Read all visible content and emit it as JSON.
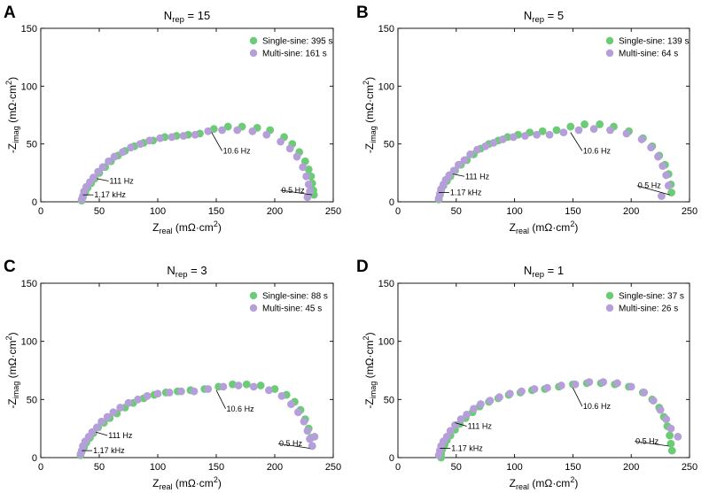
{
  "figure": {
    "colors": {
      "single_sine": "#6ccc76",
      "multi_sine": "#b49fd8",
      "axis": "#000000"
    }
  },
  "chart_data": [
    {
      "panel": "A",
      "type": "scatter",
      "title_main": "N",
      "title_sub": "rep",
      "title_rest": " = 15",
      "xlabel_main": "Z",
      "xlabel_sub": "real",
      "xlabel_rest": " (mΩ·cm",
      "xlabel_sup": "2",
      "xlabel_end": ")",
      "ylabel_main": "-Z",
      "ylabel_sub": "imag",
      "ylabel_rest": " (mΩ·cm",
      "ylabel_sup": "2",
      "ylabel_end": ")",
      "xlim": [
        0,
        250
      ],
      "ylim": [
        0,
        150
      ],
      "xticks": [
        "0",
        "50",
        "100",
        "150",
        "200",
        "250"
      ],
      "yticks": [
        "0",
        "50",
        "100",
        "150"
      ],
      "legend_position": "top-right",
      "annotations": [
        {
          "text": "1.17 kHz",
          "point": [
            36,
            6
          ],
          "label_at": [
            45,
            6
          ]
        },
        {
          "text": "111 Hz",
          "point": [
            48,
            20
          ],
          "label_at": [
            58,
            18
          ]
        },
        {
          "text": "10.6 Hz",
          "point": [
            146,
            60
          ],
          "label_at": [
            155,
            44
          ]
        },
        {
          "text": "0.5 Hz",
          "point": [
            232,
            6
          ],
          "label_at": [
            205,
            10
          ]
        }
      ],
      "series": [
        {
          "name": "Single-sine: 395 s",
          "color_key": "single_sine",
          "x": [
            35,
            36,
            38,
            40,
            43,
            46,
            50,
            55,
            60,
            66,
            72,
            80,
            88,
            96,
            106,
            116,
            126,
            136,
            148,
            160,
            172,
            185,
            196,
            208,
            215,
            221,
            226,
            229,
            231,
            232,
            233,
            233.5
          ],
          "y": [
            1,
            4,
            8,
            12,
            16,
            20,
            25,
            30,
            35,
            40,
            44,
            48,
            51,
            53,
            56,
            57,
            58,
            59,
            63,
            65,
            65,
            64,
            62,
            56,
            50,
            43,
            35,
            28,
            22,
            16,
            10,
            6
          ]
        },
        {
          "name": "Multi-sine: 161 s",
          "color_key": "multi_sine",
          "x": [
            35,
            36,
            37,
            39,
            42,
            45,
            49,
            53,
            58,
            63,
            70,
            77,
            85,
            93,
            102,
            112,
            122,
            132,
            143,
            155,
            168,
            181,
            193,
            205,
            213,
            219,
            224,
            227,
            229,
            230,
            228
          ],
          "y": [
            2,
            5,
            9,
            13,
            17,
            21,
            26,
            30,
            35,
            39,
            43,
            47,
            50,
            53,
            55,
            56,
            57,
            58,
            61,
            62,
            62,
            61,
            58,
            52,
            46,
            39,
            30,
            22,
            15,
            9,
            4
          ]
        }
      ]
    },
    {
      "panel": "B",
      "type": "scatter",
      "title_main": "N",
      "title_sub": "rep",
      "title_rest": " = 5",
      "xlabel_main": "Z",
      "xlabel_sub": "real",
      "xlabel_rest": " (mΩ·cm",
      "xlabel_sup": "2",
      "xlabel_end": ")",
      "ylabel_main": "-Z",
      "ylabel_sub": "imag",
      "ylabel_rest": " (mΩ·cm",
      "ylabel_sup": "2",
      "ylabel_end": ")",
      "xlim": [
        0,
        250
      ],
      "ylim": [
        0,
        150
      ],
      "xticks": [
        "0",
        "50",
        "100",
        "150",
        "200",
        "250"
      ],
      "yticks": [
        "0",
        "50",
        "100",
        "150"
      ],
      "legend_position": "top-right",
      "annotations": [
        {
          "text": "1.17 kHz",
          "point": [
            35,
            8
          ],
          "label_at": [
            44,
            8
          ]
        },
        {
          "text": "111 Hz",
          "point": [
            47,
            24
          ],
          "label_at": [
            57,
            22
          ]
        },
        {
          "text": "10.6 Hz",
          "point": [
            148,
            60
          ],
          "label_at": [
            158,
            44
          ]
        },
        {
          "text": "0.5 Hz",
          "point": [
            233,
            6
          ],
          "label_at": [
            205,
            14
          ]
        }
      ],
      "series": [
        {
          "name": "Single-sine: 139 s",
          "color_key": "single_sine",
          "x": [
            35,
            36,
            37,
            39,
            42,
            45,
            49,
            54,
            59,
            65,
            71,
            78,
            86,
            94,
            103,
            113,
            124,
            136,
            148,
            160,
            173,
            185,
            198,
            210,
            218,
            224,
            229,
            232,
            234,
            234.5
          ],
          "y": [
            2,
            6,
            10,
            14,
            18,
            22,
            27,
            32,
            36,
            41,
            46,
            50,
            53,
            56,
            58,
            60,
            61,
            62,
            65,
            67,
            67,
            65,
            61,
            55,
            48,
            40,
            32,
            24,
            15,
            8
          ]
        },
        {
          "name": "Multi-sine: 64 s",
          "color_key": "multi_sine",
          "x": [
            35,
            36,
            37,
            39,
            41,
            44,
            48,
            52,
            57,
            62,
            68,
            75,
            82,
            90,
            99,
            109,
            119,
            130,
            142,
            155,
            168,
            182,
            196,
            209,
            217,
            223,
            227,
            230,
            232,
            226
          ],
          "y": [
            3,
            7,
            11,
            15,
            19,
            23,
            27,
            32,
            36,
            41,
            45,
            48,
            51,
            54,
            56,
            57,
            58,
            58,
            60,
            62,
            63,
            62,
            59,
            54,
            47,
            39,
            31,
            23,
            14,
            5
          ]
        }
      ]
    },
    {
      "panel": "C",
      "type": "scatter",
      "title_main": "N",
      "title_sub": "rep",
      "title_rest": " = 3",
      "xlabel_main": "Z",
      "xlabel_sub": "real",
      "xlabel_rest": " (mΩ·cm",
      "xlabel_sup": "2",
      "xlabel_end": ")",
      "ylabel_main": "-Z",
      "ylabel_sub": "imag",
      "ylabel_rest": " (mΩ·cm",
      "ylabel_sup": "2",
      "ylabel_end": ")",
      "xlim": [
        0,
        250
      ],
      "ylim": [
        0,
        150
      ],
      "xticks": [
        "0",
        "50",
        "100",
        "150",
        "200",
        "250"
      ],
      "yticks": [
        "0",
        "50",
        "100",
        "150"
      ],
      "legend_position": "top-right",
      "annotations": [
        {
          "text": "1.17 kHz",
          "point": [
            35,
            6
          ],
          "label_at": [
            44,
            6
          ]
        },
        {
          "text": "111 Hz",
          "point": [
            47,
            22
          ],
          "label_at": [
            57,
            19
          ]
        },
        {
          "text": "10.6 Hz",
          "point": [
            150,
            58
          ],
          "label_at": [
            158,
            42
          ]
        },
        {
          "text": "0.5 Hz",
          "point": [
            230,
            8
          ],
          "label_at": [
            203,
            12
          ]
        }
      ],
      "series": [
        {
          "name": "Single-sine: 88 s",
          "color_key": "single_sine",
          "x": [
            34,
            35,
            37,
            39,
            42,
            45,
            49,
            54,
            59,
            65,
            72,
            79,
            88,
            97,
            107,
            117,
            128,
            140,
            152,
            164,
            176,
            188,
            200,
            210,
            217,
            222,
            226,
            229,
            231,
            232
          ],
          "y": [
            2,
            5,
            9,
            13,
            17,
            21,
            26,
            30,
            34,
            38,
            43,
            47,
            51,
            54,
            56,
            57,
            58,
            59,
            61,
            63,
            63,
            62,
            59,
            54,
            48,
            41,
            33,
            25,
            17,
            10
          ]
        },
        {
          "name": "Multi-sine: 45 s",
          "color_key": "multi_sine",
          "x": [
            34,
            35,
            36,
            38,
            41,
            44,
            48,
            52,
            57,
            62,
            68,
            75,
            83,
            91,
            100,
            110,
            120,
            131,
            143,
            156,
            169,
            182,
            195,
            206,
            214,
            220,
            225,
            228,
            230,
            232,
            234
          ],
          "y": [
            3,
            6,
            10,
            14,
            18,
            22,
            26,
            31,
            35,
            39,
            43,
            47,
            50,
            53,
            55,
            56,
            57,
            57,
            59,
            61,
            62,
            61,
            58,
            53,
            46,
            39,
            31,
            23,
            16,
            10,
            18
          ]
        }
      ]
    },
    {
      "panel": "D",
      "type": "scatter",
      "title_main": "N",
      "title_sub": "rep",
      "title_rest": " = 1",
      "xlabel_main": "Z",
      "xlabel_sub": "real",
      "xlabel_rest": " (mΩ·cm",
      "xlabel_sup": "2",
      "xlabel_end": ")",
      "ylabel_main": "-Z",
      "ylabel_sub": "imag",
      "ylabel_rest": " (mΩ·cm",
      "ylabel_sup": "2",
      "ylabel_end": ")",
      "xlim": [
        0,
        250
      ],
      "ylim": [
        0,
        150
      ],
      "xticks": [
        "0",
        "50",
        "100",
        "150",
        "200",
        "250"
      ],
      "yticks": [
        "0",
        "50",
        "100",
        "150"
      ],
      "legend_position": "top-right",
      "annotations": [
        {
          "text": "1.17 kHz",
          "point": [
            36,
            8
          ],
          "label_at": [
            45,
            8
          ]
        },
        {
          "text": "111 Hz",
          "point": [
            49,
            30
          ],
          "label_at": [
            59,
            27
          ]
        },
        {
          "text": "10.6 Hz",
          "point": [
            150,
            60
          ],
          "label_at": [
            158,
            44
          ]
        },
        {
          "text": "0.5 Hz",
          "point": [
            232,
            10
          ],
          "label_at": [
            203,
            14
          ]
        }
      ],
      "series": [
        {
          "name": "Single-sine: 37 s",
          "color_key": "single_sine",
          "x": [
            37,
            37,
            38,
            40,
            42,
            45,
            49,
            53,
            58,
            64,
            70,
            78,
            86,
            95,
            105,
            115,
            126,
            138,
            150,
            162,
            174,
            186,
            198,
            210,
            218,
            224,
            228,
            231,
            233,
            234,
            235
          ],
          "y": [
            0,
            3,
            7,
            11,
            15,
            19,
            24,
            29,
            34,
            39,
            44,
            48,
            51,
            54,
            56,
            58,
            59,
            61,
            63,
            64,
            64,
            63,
            61,
            56,
            50,
            43,
            35,
            27,
            19,
            12,
            6
          ]
        },
        {
          "name": "Multi-sine: 26 s",
          "color_key": "multi_sine",
          "x": [
            35,
            36,
            37,
            39,
            42,
            45,
            49,
            54,
            59,
            65,
            71,
            79,
            87,
            96,
            106,
            117,
            128,
            140,
            152,
            164,
            176,
            188,
            200,
            211,
            219,
            225,
            230,
            234,
            240
          ],
          "y": [
            2,
            6,
            10,
            14,
            18,
            23,
            28,
            33,
            37,
            42,
            46,
            49,
            52,
            55,
            57,
            59,
            60,
            62,
            63,
            65,
            65,
            64,
            61,
            56,
            49,
            41,
            33,
            25,
            18
          ]
        }
      ]
    }
  ]
}
